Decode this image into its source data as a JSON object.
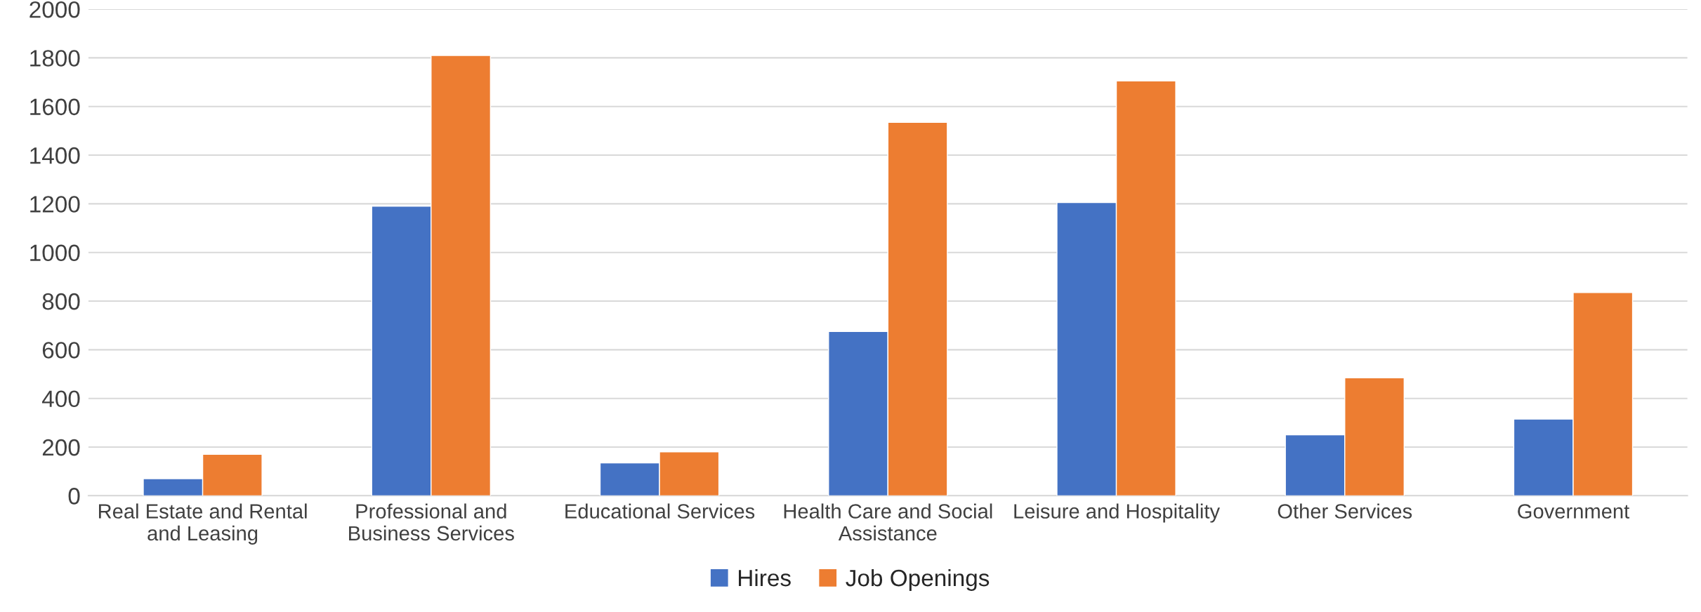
{
  "chart_data": {
    "type": "bar",
    "categories": [
      "Real Estate and Rental and Leasing",
      "Professional and Business Services",
      "Educational Services",
      "Health Care and Social Assistance",
      "Leisure and Hospitality",
      "Other Services",
      "Government"
    ],
    "series": [
      {
        "name": "Hires",
        "color": "#4472c4",
        "values": [
          70,
          1190,
          135,
          675,
          1205,
          250,
          315
        ]
      },
      {
        "name": "Job Openings",
        "color": "#ed7d31",
        "values": [
          170,
          1810,
          180,
          1535,
          1705,
          485,
          835
        ]
      }
    ],
    "ylim": [
      0,
      2000
    ],
    "yticks": [
      0,
      200,
      400,
      600,
      800,
      1000,
      1200,
      1400,
      1600,
      1800,
      2000
    ],
    "grid": "y",
    "legend": "bottom"
  }
}
